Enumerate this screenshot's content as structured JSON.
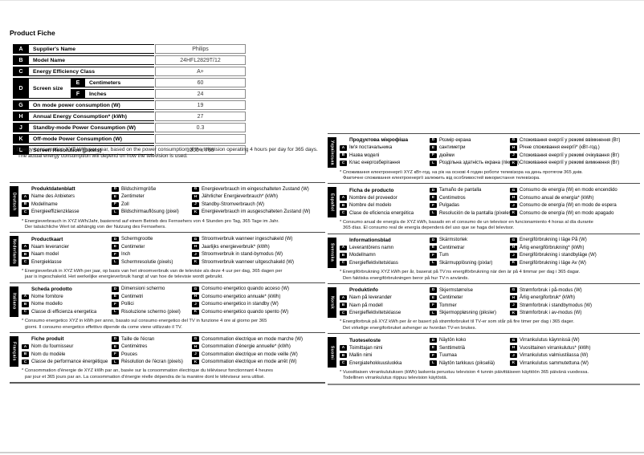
{
  "page": {
    "title": "Product Fiche"
  },
  "colors": {
    "text": "#000000",
    "value_text": "#3a3a3a",
    "chip_bg": "#000000",
    "chip_fg": "#ffffff",
    "rule": "#5a5a5a"
  },
  "product_table": {
    "rows": [
      {
        "key": "A",
        "label": "Supplier's Name",
        "value": "Philips"
      },
      {
        "key": "B",
        "label": "Model Name",
        "value": "24HFL2829T/12"
      },
      {
        "key": "C",
        "label": "Energy Efficiency Class",
        "value": "A+"
      },
      {
        "key": "D",
        "label": "Screen size",
        "sub": [
          {
            "key": "E",
            "label": "Centimeters",
            "value": "60"
          },
          {
            "key": "F",
            "label": "Inches",
            "value": "24"
          }
        ]
      },
      {
        "key": "G",
        "label": "On mode power consumption (W)",
        "value": "19"
      },
      {
        "key": "H",
        "label": "Annual Energy Consumption* (kWh)",
        "value": "27"
      },
      {
        "key": "J",
        "label": "Standby-mode Power Consumption (W)",
        "value": "0.3"
      },
      {
        "key": "K",
        "label": "Off-mode Power Consumption (W)",
        "value": ""
      },
      {
        "key": "L",
        "label": "Screen Resolution (pixels)",
        "value": "1366 x 768"
      }
    ]
  },
  "footnote": {
    "line1": "* Energy consumption XYZ kWh per year, based on the power consumption of the television operating 4 hours per day for 365 days.",
    "line2": "The actual energy consumption will depend on how the television is used."
  },
  "sections_left": [
    {
      "language": "Deutsch",
      "title": "Produktdatenblatt",
      "col1": [
        {
          "key": "A",
          "label": "Name des Anbieters"
        },
        {
          "key": "B",
          "label": "Modellname"
        },
        {
          "key": "C",
          "label": "Energieeffizienzklasse"
        }
      ],
      "col2": [
        {
          "key": "D",
          "label": "Bildschirmgröße"
        },
        {
          "key": "E",
          "label": "Zentimeter"
        },
        {
          "key": "F",
          "label": "Zoll"
        },
        {
          "key": "L",
          "label": "Bildschirmauflösung (pixel)"
        }
      ],
      "col3": [
        {
          "key": "G",
          "label": "Energieverbrauch im eingeschalteten Zustand (W)"
        },
        {
          "key": "H",
          "label": "Jährlicher Energieverbrauch* (kWh)"
        },
        {
          "key": "J",
          "label": "Standby-Stromverbrauch (W)"
        },
        {
          "key": "K",
          "label": "Energieverbrauch im ausgeschalteten Zustand (W)"
        }
      ],
      "footnote": [
        "* Energieverbrauch in XYZ kWh/Jahr, basierend auf einem Betrieb des Fernsehers von 4 Stunden pro Tag, 365 Tage im Jahr.",
        "Der tatsächliche Wert ist abhängig von der Nutzung des Fernsehers."
      ]
    },
    {
      "language": "Nederlands",
      "title": "Productkaart",
      "col1": [
        {
          "key": "A",
          "label": "Naam leverancier"
        },
        {
          "key": "B",
          "label": "Naam model"
        },
        {
          "key": "C",
          "label": "Energieklasse"
        }
      ],
      "col2": [
        {
          "key": "D",
          "label": "Schermgrootte"
        },
        {
          "key": "E",
          "label": "Centimeter"
        },
        {
          "key": "F",
          "label": "Inch"
        },
        {
          "key": "L",
          "label": "Schermresolutie (pixels)"
        }
      ],
      "col3": [
        {
          "key": "G",
          "label": "Stroomverbruik wanneer ingeschakeld (W)"
        },
        {
          "key": "H",
          "label": "Jaarlijks energieverbruik* (kWh)"
        },
        {
          "key": "J",
          "label": "Stroomverbruik in stand-bymodus (W)"
        },
        {
          "key": "K",
          "label": "Stroomverbruik wanneer uitgeschakeld (W)"
        }
      ],
      "footnote": [
        "* Energieverbruik in XYZ kWh per jaar, op basis van het stroomverbruik van de televisie als deze 4 uur per dag, 365 dagen per",
        "jaar is ingeschakeld. Het werkelijke energieverbruik hangt af van hoe de televisie wordt gebruikt."
      ]
    },
    {
      "language": "Italiano",
      "title": "Scheda prodotto",
      "col1": [
        {
          "key": "A",
          "label": "Nome fornitore"
        },
        {
          "key": "B",
          "label": "Nome modello"
        },
        {
          "key": "C",
          "label": "Classe di efficienza energetica"
        }
      ],
      "col2": [
        {
          "key": "D",
          "label": "Dimensioni schermo"
        },
        {
          "key": "E",
          "label": "Centimetri"
        },
        {
          "key": "F",
          "label": "Pollici"
        },
        {
          "key": "L",
          "label": "Risoluzione schermo (pixel)"
        }
      ],
      "col3": [
        {
          "key": "G",
          "label": "Consumo energetico quando acceso (W)"
        },
        {
          "key": "H",
          "label": "Consumo energetico annuale* (kWh)"
        },
        {
          "key": "J",
          "label": "Consumo energetico in standby (W)"
        },
        {
          "key": "K",
          "label": "Consumo energetico quando spento (W)"
        }
      ],
      "footnote": [
        "* Consumo energetico XYZ in kWh per anno, basato sul consumo energetico del TV in funzione 4 ore al giorno per 365",
        "giorni. Il consumo energetico effettivo dipende da come viene utilizzato il TV."
      ]
    },
    {
      "language": "Français",
      "title": "Fiche produit",
      "col1": [
        {
          "key": "A",
          "label": "Nom du fournisseur"
        },
        {
          "key": "B",
          "label": "Nom du modèle"
        },
        {
          "key": "C",
          "label": "Classe de performance énergétique"
        }
      ],
      "col2": [
        {
          "key": "D",
          "label": "Taille de l'écran"
        },
        {
          "key": "E",
          "label": "Centimètres"
        },
        {
          "key": "F",
          "label": "Pouces"
        },
        {
          "key": "L",
          "label": "Résolution de l'écran (pixels)"
        }
      ],
      "col3": [
        {
          "key": "G",
          "label": "Consommation électrique en mode marche (W)"
        },
        {
          "key": "H",
          "label": "Consommation d'énergie annuelle* (kWh)"
        },
        {
          "key": "J",
          "label": "Consommation électrique en mode veille (W)"
        },
        {
          "key": "K",
          "label": "Consommation électrique en mode arrêt (W)"
        }
      ],
      "footnote": [
        "* Consommation d'énergie de XYZ kWh par an, basée sur la consommation électrique du téléviseur fonctionnant 4 heures",
        "par jour et 365 jours par an. La consommation d'énergie réelle dépendra de la manière dont le téléviseur sera utilisé."
      ]
    }
  ],
  "sections_right": [
    {
      "language": "Українська",
      "title": "Продуктова мікрофіша",
      "col1": [
        {
          "key": "A",
          "label": "Ім'я постачальника"
        },
        {
          "key": "B",
          "label": "Назва моделі"
        },
        {
          "key": "C",
          "label": "Клас енергозберігання"
        }
      ],
      "col2": [
        {
          "key": "D",
          "label": "Розмір екрана"
        },
        {
          "key": "E",
          "label": "сантиметри"
        },
        {
          "key": "F",
          "label": "дюйми"
        },
        {
          "key": "L",
          "label": "Роздільна здатність екрана (пікселі)"
        }
      ],
      "col3": [
        {
          "key": "G",
          "label": "Споживання енергії у режимі ввімкнення (Вт)"
        },
        {
          "key": "H",
          "label": "Річне споживання енергії* (кВт-год.)"
        },
        {
          "key": "J",
          "label": "Споживання енергії у режимі очікування (Вт)"
        },
        {
          "key": "K",
          "label": "Споживання енергії у режимі вимкнення (Вт)"
        }
      ],
      "footnote": [
        "* Споживання електроенергії XYZ кВт-год. на рік на основі 4 годин роботи телевізора на день протягом 365 днів.",
        "Фактичне споживання електроенергії залежить від особливостей використання телевізора."
      ]
    },
    {
      "language": "Español",
      "title": "Ficha de producto",
      "col1": [
        {
          "key": "A",
          "label": "Nombre del proveedor"
        },
        {
          "key": "B",
          "label": "Nombre del modelo"
        },
        {
          "key": "C",
          "label": "Clase de eficiencia energética"
        }
      ],
      "col2": [
        {
          "key": "D",
          "label": "Tamaño de pantalla"
        },
        {
          "key": "E",
          "label": "Centímetros"
        },
        {
          "key": "F",
          "label": "Pulgadas"
        },
        {
          "key": "L",
          "label": "Resolución de la pantalla (píxeles)"
        }
      ],
      "col3": [
        {
          "key": "G",
          "label": "Consumo de energía (W) en modo encendido"
        },
        {
          "key": "H",
          "label": "Consumo anual de energía* (kWh)"
        },
        {
          "key": "J",
          "label": "Consumo de energía (W) en modo de espera"
        },
        {
          "key": "K",
          "label": "Consumo de energía (W) en modo apagado"
        }
      ],
      "footnote": [
        "* Consumo anual de energía de XYZ kWh, basado en el consumo de un televisor en funcionamiento 4 horas al día durante",
        "365 días. El consumo real de energía dependerá del uso que se haga del televisor."
      ]
    },
    {
      "language": "Svenska",
      "title": "Informationsblad",
      "col1": [
        {
          "key": "A",
          "label": "Leverantörens namn"
        },
        {
          "key": "B",
          "label": "Modellnamn"
        },
        {
          "key": "C",
          "label": "Energieffektivitetsklass"
        }
      ],
      "col2": [
        {
          "key": "D",
          "label": "Skärmstorlek"
        },
        {
          "key": "E",
          "label": "Centimetrar"
        },
        {
          "key": "F",
          "label": "Tum"
        },
        {
          "key": "L",
          "label": "Skärmupplösning (pixlar)"
        }
      ],
      "col3": [
        {
          "key": "G",
          "label": "Energiförbrukning i läge På (W)"
        },
        {
          "key": "H",
          "label": "Årlig energiförbrukning* (kWh)"
        },
        {
          "key": "J",
          "label": "Energiförbrukning i standbyläge (W)"
        },
        {
          "key": "K",
          "label": "Energiförbrukning i läge Av (W)"
        }
      ],
      "footnote": [
        "* Energiförbrukning XYZ kWh per år, baserat på TV:ns energiförbrukning när den är på 4 timmar per dag i 365 dagar.",
        "Den faktiska energiförbrukningen beror på hur TV:n används."
      ]
    },
    {
      "language": "Norsk",
      "title": "Produktinfo",
      "col1": [
        {
          "key": "A",
          "label": "Navn på leverandør"
        },
        {
          "key": "B",
          "label": "Navn på modell"
        },
        {
          "key": "C",
          "label": "Energieffektivitetsklasse"
        }
      ],
      "col2": [
        {
          "key": "D",
          "label": "Skjermstørrelse"
        },
        {
          "key": "E",
          "label": "Centimeter"
        },
        {
          "key": "F",
          "label": "Tommer"
        },
        {
          "key": "L",
          "label": "Skjermoppløsning (piksler)"
        }
      ],
      "col3": [
        {
          "key": "G",
          "label": "Strømforbruk i på-modus (W)"
        },
        {
          "key": "H",
          "label": "Årlig energiforbruk* (kWh)"
        },
        {
          "key": "J",
          "label": "Strømforbruk i standbymodus (W)"
        },
        {
          "key": "K",
          "label": "Strømforbruk i av-modus (W)"
        }
      ],
      "footnote": [
        "* Energiforbruk på XYZ kWh per år er basert på strømforbruket til TV-er som står på fire timer per dag i 365 dager.",
        "Det virkelige energiforbruket avhenger av hvordan TV-en brukes."
      ]
    },
    {
      "language": "Suomi",
      "title": "Tuoteseloste",
      "col1": [
        {
          "key": "A",
          "label": "Toimittajan nimi"
        },
        {
          "key": "B",
          "label": "Mallin nimi"
        },
        {
          "key": "C",
          "label": "Energiatehokkuusluokka"
        }
      ],
      "col2": [
        {
          "key": "D",
          "label": "Näytön koko"
        },
        {
          "key": "E",
          "label": "Senttimetriä"
        },
        {
          "key": "F",
          "label": "Tuumaa"
        },
        {
          "key": "L",
          "label": "Näytön tarkkuus (pikseliä)"
        }
      ],
      "col3": [
        {
          "key": "G",
          "label": "Virrankulutus käynnissä (W)"
        },
        {
          "key": "H",
          "label": "Vuosittainen virrankulutus* (kWh)"
        },
        {
          "key": "J",
          "label": "Virrankulutus valmiustilassa (W)"
        },
        {
          "key": "K",
          "label": "Virrankulutus sammutettuna (W)"
        }
      ],
      "footnote": [
        "* Vuosittaisen virrankulutuksen (kWh) laskenta perustuu television 4 tunnin päivittäiseen käyttöön 365 päivänä vuodessa.",
        "Todellinen virrankulutus riippuu television käytöstä."
      ]
    }
  ]
}
